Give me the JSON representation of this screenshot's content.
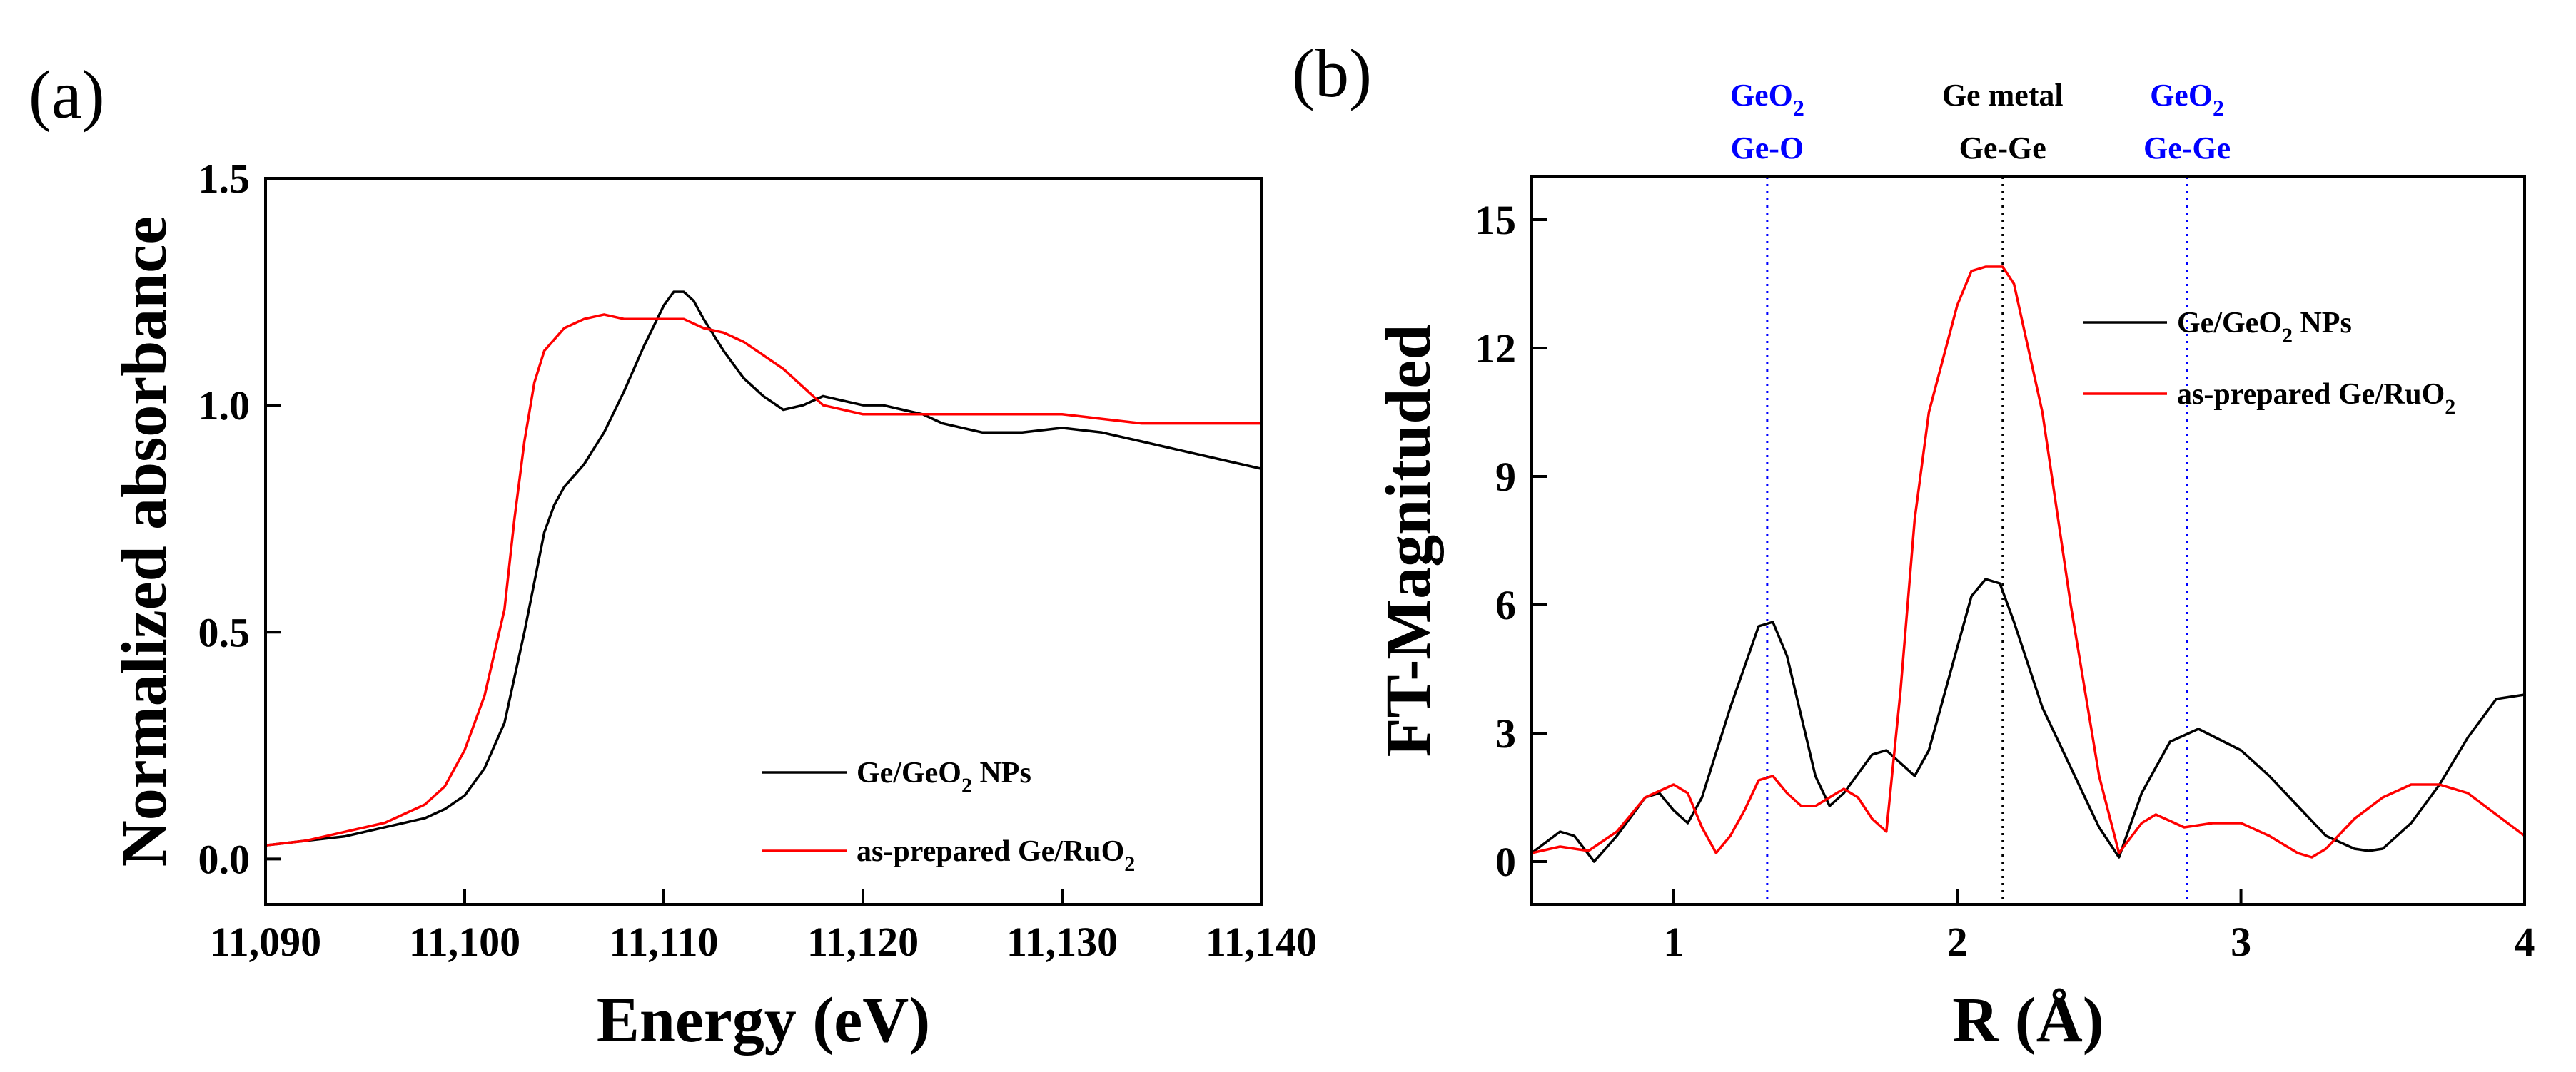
{
  "colors": {
    "black_series": "#000000",
    "red_series": "#ff0000",
    "reference_blue": "#0000ff",
    "reference_black": "#000000"
  },
  "chart_data": [
    {
      "panel": "(a)",
      "type": "line",
      "title": "",
      "xlabel": "Energy (eV)",
      "ylabel": "Normalized absorbance",
      "xlim": [
        11090,
        11140
      ],
      "ylim": [
        -0.1,
        1.5
      ],
      "xticks": [
        11090,
        11100,
        11110,
        11120,
        11130,
        11140
      ],
      "xtick_labels": [
        "11,090",
        "11,100",
        "11,110",
        "11,120",
        "11,130",
        "11,140"
      ],
      "yticks": [
        0.0,
        0.5,
        1.0,
        1.5
      ],
      "ytick_labels": [
        "0.0",
        "0.5",
        "1.0",
        "1.5"
      ],
      "legend": "lower-right",
      "series": [
        {
          "name_parts": [
            "Ge/GeO",
            "2",
            " NPs"
          ],
          "color": "#000000",
          "x": [
            11090,
            11092,
            11094,
            11096,
            11098,
            11099,
            11100,
            11101,
            11102,
            11103,
            11104,
            11104.5,
            11105,
            11106,
            11107,
            11108,
            11109,
            11110,
            11110.5,
            11111,
            11111.5,
            11112,
            11113,
            11114,
            11115,
            11116,
            11117,
            11118,
            11119,
            11120,
            11121,
            11122,
            11123,
            11124,
            11126,
            11128,
            11130,
            11132,
            11134,
            11136,
            11138,
            11140
          ],
          "y": [
            0.03,
            0.04,
            0.05,
            0.07,
            0.09,
            0.11,
            0.14,
            0.2,
            0.3,
            0.5,
            0.72,
            0.78,
            0.82,
            0.87,
            0.94,
            1.03,
            1.13,
            1.22,
            1.25,
            1.25,
            1.23,
            1.19,
            1.12,
            1.06,
            1.02,
            0.99,
            1.0,
            1.02,
            1.01,
            1.0,
            1.0,
            0.99,
            0.98,
            0.96,
            0.94,
            0.94,
            0.95,
            0.94,
            0.92,
            0.9,
            0.88,
            0.86
          ]
        },
        {
          "name_parts": [
            "as-prepared Ge/RuO",
            "2",
            ""
          ],
          "color": "#ff0000",
          "x": [
            11090,
            11092,
            11094,
            11096,
            11098,
            11099,
            11100,
            11101,
            11102,
            11102.5,
            11103,
            11103.5,
            11104,
            11105,
            11106,
            11107,
            11108,
            11109,
            11110,
            11111,
            11112,
            11113,
            11114,
            11115,
            11116,
            11117,
            11118,
            11120,
            11122,
            11124,
            11126,
            11128,
            11130,
            11132,
            11134,
            11136,
            11138,
            11140
          ],
          "y": [
            0.03,
            0.04,
            0.06,
            0.08,
            0.12,
            0.16,
            0.24,
            0.36,
            0.55,
            0.75,
            0.92,
            1.05,
            1.12,
            1.17,
            1.19,
            1.2,
            1.19,
            1.19,
            1.19,
            1.19,
            1.17,
            1.16,
            1.14,
            1.11,
            1.08,
            1.04,
            1.0,
            0.98,
            0.98,
            0.98,
            0.98,
            0.98,
            0.98,
            0.97,
            0.96,
            0.96,
            0.96,
            0.96
          ]
        }
      ]
    },
    {
      "panel": "(b)",
      "type": "line",
      "title": "",
      "xlabel": "R (Å)",
      "ylabel": "FT-Magnituded",
      "xlim": [
        0.5,
        4.0
      ],
      "ylim": [
        -1.0,
        16.0
      ],
      "xticks": [
        1,
        2,
        3,
        4
      ],
      "xtick_labels": [
        "1",
        "2",
        "3",
        "4"
      ],
      "yticks": [
        0,
        3,
        6,
        9,
        12,
        15
      ],
      "ytick_labels": [
        "0",
        "3",
        "6",
        "9",
        "12",
        "15"
      ],
      "legend": "upper-right",
      "reference_lines": [
        {
          "x": 1.33,
          "color": "#0000ff",
          "line1_parts": [
            "GeO",
            "2"
          ],
          "line2": "Ge-O"
        },
        {
          "x": 2.16,
          "color": "#000000",
          "line1_parts": [
            "Ge metal",
            ""
          ],
          "line2": "Ge-Ge"
        },
        {
          "x": 2.81,
          "color": "#0000ff",
          "line1_parts": [
            "GeO",
            "2"
          ],
          "line2": "Ge-Ge"
        }
      ],
      "series": [
        {
          "name_parts": [
            "Ge/GeO",
            "2",
            " NPs"
          ],
          "color": "#000000",
          "x": [
            0.5,
            0.6,
            0.65,
            0.72,
            0.8,
            0.9,
            0.95,
            1.0,
            1.05,
            1.1,
            1.2,
            1.3,
            1.35,
            1.4,
            1.5,
            1.55,
            1.6,
            1.7,
            1.75,
            1.8,
            1.85,
            1.9,
            2.0,
            2.05,
            2.1,
            2.15,
            2.2,
            2.3,
            2.4,
            2.5,
            2.57,
            2.65,
            2.75,
            2.85,
            3.0,
            3.1,
            3.2,
            3.3,
            3.4,
            3.45,
            3.5,
            3.6,
            3.7,
            3.8,
            3.9,
            4.0
          ],
          "y": [
            0.2,
            0.7,
            0.6,
            0.0,
            0.6,
            1.5,
            1.6,
            1.2,
            0.9,
            1.5,
            3.6,
            5.5,
            5.6,
            4.8,
            2.0,
            1.3,
            1.6,
            2.5,
            2.6,
            2.3,
            2.0,
            2.6,
            5.0,
            6.2,
            6.6,
            6.5,
            5.6,
            3.6,
            2.2,
            0.8,
            0.1,
            1.6,
            2.8,
            3.1,
            2.6,
            2.0,
            1.3,
            0.6,
            0.3,
            0.25,
            0.3,
            0.9,
            1.8,
            2.9,
            3.8,
            3.9
          ]
        },
        {
          "name_parts": [
            "as-prepared Ge/RuO",
            "2",
            ""
          ],
          "color": "#ff0000",
          "x": [
            0.5,
            0.6,
            0.7,
            0.8,
            0.9,
            1.0,
            1.05,
            1.1,
            1.15,
            1.2,
            1.25,
            1.3,
            1.35,
            1.4,
            1.45,
            1.5,
            1.55,
            1.6,
            1.65,
            1.7,
            1.75,
            1.8,
            1.85,
            1.9,
            2.0,
            2.05,
            2.1,
            2.16,
            2.2,
            2.3,
            2.4,
            2.5,
            2.57,
            2.65,
            2.7,
            2.8,
            2.9,
            3.0,
            3.1,
            3.2,
            3.25,
            3.3,
            3.4,
            3.5,
            3.6,
            3.7,
            3.8,
            3.9,
            4.0
          ],
          "y": [
            0.2,
            0.35,
            0.25,
            0.7,
            1.5,
            1.8,
            1.6,
            0.8,
            0.2,
            0.6,
            1.2,
            1.9,
            2.0,
            1.6,
            1.3,
            1.3,
            1.5,
            1.7,
            1.5,
            1.0,
            0.7,
            4.0,
            8.0,
            10.5,
            13.0,
            13.8,
            13.9,
            13.9,
            13.5,
            10.5,
            6.0,
            2.0,
            0.2,
            0.9,
            1.1,
            0.8,
            0.9,
            0.9,
            0.6,
            0.2,
            0.1,
            0.3,
            1.0,
            1.5,
            1.8,
            1.8,
            1.6,
            1.1,
            0.6
          ]
        }
      ]
    }
  ]
}
